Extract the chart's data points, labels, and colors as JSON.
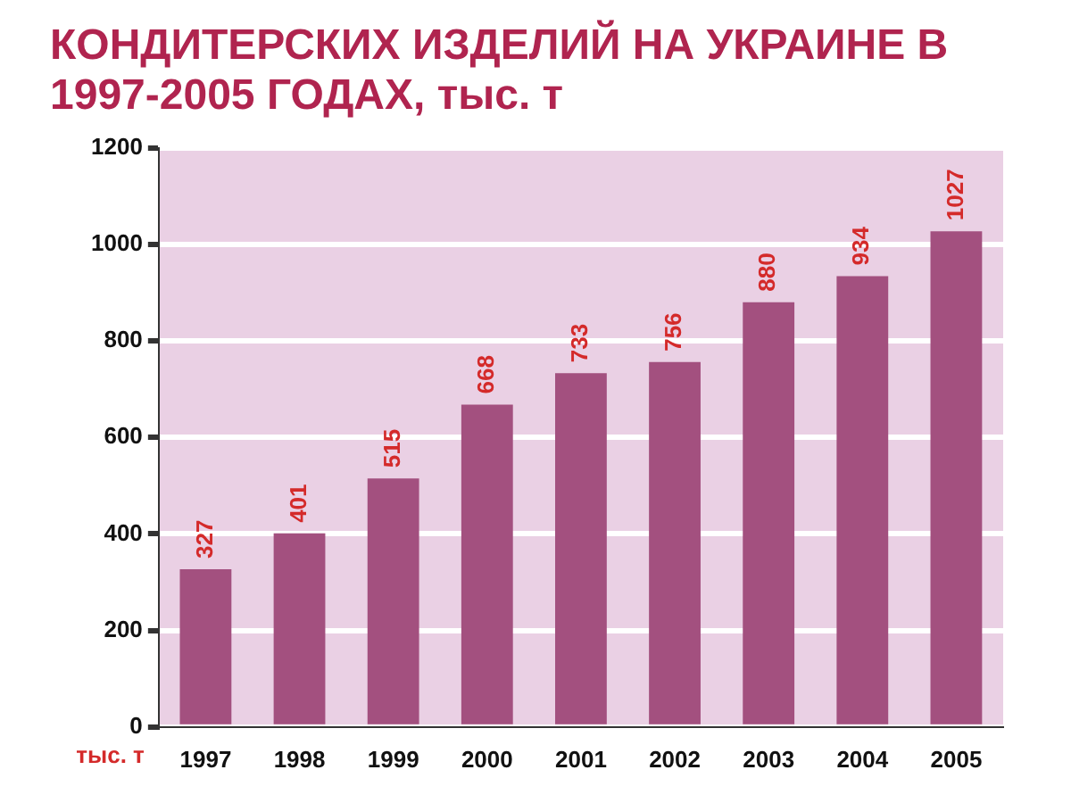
{
  "chart_data": {
    "type": "bar",
    "title": "КОНДИТЕРСКИХ ИЗДЕЛИЙ НА УКРАИНЕ В 1997-2005 ГОДАХ, тыс. т",
    "categories": [
      "1997",
      "1998",
      "1999",
      "2000",
      "2001",
      "2002",
      "2003",
      "2004",
      "2005"
    ],
    "values": [
      327,
      401,
      515,
      668,
      733,
      756,
      880,
      934,
      1027
    ],
    "color": "#a3507f",
    "ylim": [
      0,
      1200
    ],
    "yticks": [
      0,
      200,
      400,
      600,
      800,
      1000,
      1200
    ],
    "grid": "y",
    "data_labels": true,
    "annotations": [
      "тыс. т"
    ]
  }
}
